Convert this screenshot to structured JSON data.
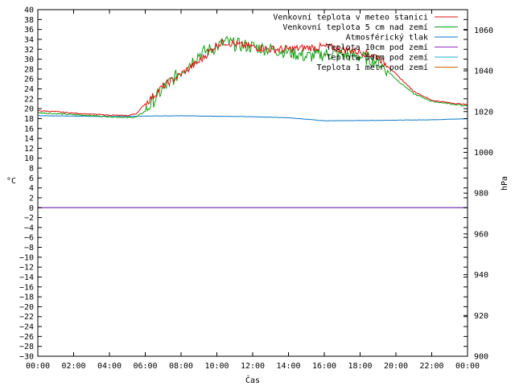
{
  "chart_data": {
    "type": "line",
    "xlabel": "Čas",
    "ylabel": "°C",
    "y2label": "hPa",
    "x_ticks": [
      "00:00",
      "02:00",
      "04:00",
      "06:00",
      "08:00",
      "10:00",
      "12:00",
      "14:00",
      "16:00",
      "18:00",
      "20:00",
      "22:00",
      "00:00"
    ],
    "x_range_hours": [
      0,
      24
    ],
    "ylim": [
      -30,
      40
    ],
    "y_step": 2,
    "y2lim": [
      900,
      1070
    ],
    "y2_ticks": [
      900,
      920,
      940,
      960,
      980,
      1000,
      1020,
      1040,
      1060
    ],
    "legend_position": "top-right",
    "grid": false,
    "series": [
      {
        "name": "Venkovní teplota v meteo stanici",
        "axis": "left",
        "color": "#e01010",
        "x": [
          0,
          1,
          2,
          3,
          4,
          5,
          5.5,
          6,
          7,
          8,
          9,
          10,
          10.5,
          11,
          12,
          13,
          14,
          15,
          16,
          17,
          18,
          19,
          20,
          21,
          22,
          23,
          24
        ],
        "y": [
          19.6,
          19.4,
          19.1,
          18.9,
          18.7,
          18.6,
          19.0,
          21.0,
          24.5,
          27.0,
          29.5,
          33.0,
          33.5,
          33.0,
          32.5,
          32.0,
          32.0,
          32.3,
          32.5,
          32.0,
          31.5,
          30.5,
          27.0,
          23.5,
          21.7,
          21.2,
          20.8
        ]
      },
      {
        "name": "Venkovní teplota 5 cm nad zemí",
        "axis": "left",
        "color": "#10a010",
        "x": [
          0,
          1,
          2,
          3,
          4,
          5,
          5.5,
          6,
          7,
          8,
          9,
          10,
          10.5,
          11,
          12,
          13,
          14,
          15,
          16,
          17,
          18,
          19,
          20,
          21,
          22,
          23,
          24
        ],
        "y": [
          19.2,
          19.0,
          18.8,
          18.6,
          18.4,
          18.2,
          18.3,
          19.5,
          24.0,
          27.5,
          31.0,
          32.5,
          33.5,
          33.0,
          32.5,
          32.0,
          31.5,
          30.5,
          31.0,
          31.0,
          30.5,
          29.5,
          26.0,
          23.0,
          21.5,
          21.0,
          20.5
        ]
      },
      {
        "name": "Atmosférický tlak",
        "axis": "right",
        "color": "#0b78c8",
        "x": [
          0,
          2,
          4,
          6,
          8,
          10,
          12,
          14,
          16,
          18,
          20,
          22,
          24
        ],
        "y": [
          1018.0,
          1017.8,
          1017.6,
          1017.8,
          1018.0,
          1017.7,
          1017.5,
          1017.0,
          1015.5,
          1015.6,
          1015.8,
          1016.0,
          1016.5
        ]
      },
      {
        "name": "Teplota 10cm pod zemí",
        "axis": "left",
        "color": "#9030c0",
        "x": [
          0,
          24
        ],
        "y": [
          0,
          0
        ]
      },
      {
        "name": "Teplota 50cm pod zemí",
        "axis": "left",
        "color": "#20b0d0",
        "x": [
          0,
          24
        ],
        "y": [
          0,
          0
        ]
      },
      {
        "name": "Teplota 1 metr pod zemí",
        "axis": "left",
        "color": "#d06010",
        "x": [
          0,
          24
        ],
        "y": [
          0,
          0
        ]
      }
    ]
  }
}
